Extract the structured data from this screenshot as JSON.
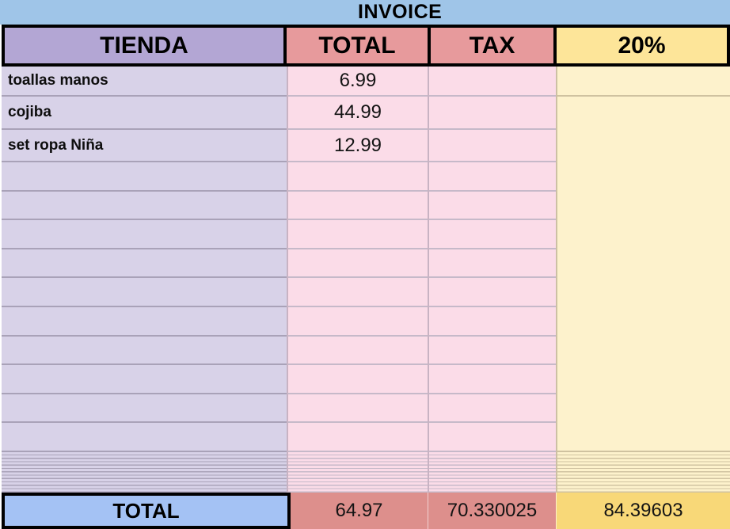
{
  "title": "INVOICE",
  "colors": {
    "band_blue": "#9fc5e8",
    "header_purple": "#b3a6d4",
    "header_red": "#e79a9c",
    "header_yellow": "#fde599",
    "body_purple": "#d8d2e8",
    "body_pink": "#fbdce8",
    "body_yellow": "#fdf2cc",
    "footer_blue": "#a4c2f4",
    "footer_red": "#dd8f8c",
    "footer_yellow": "#f8d878",
    "border_black": "#000000"
  },
  "table": {
    "columns": [
      {
        "key": "tienda",
        "label": "TIENDA"
      },
      {
        "key": "total",
        "label": "TOTAL"
      },
      {
        "key": "tax",
        "label": "TAX"
      },
      {
        "key": "pct",
        "label": "20%"
      }
    ],
    "items": [
      {
        "tienda": "toallas manos",
        "total": "6.99",
        "tax": "",
        "pct": ""
      },
      {
        "tienda": "cojiba",
        "total": "44.99",
        "tax": "",
        "pct": ""
      },
      {
        "tienda": "set ropa Niña",
        "total": "12.99",
        "tax": "",
        "pct": ""
      }
    ],
    "empty_row_count": 10,
    "footer": {
      "label": "TOTAL",
      "total": "64.97",
      "tax": "70.330025",
      "pct": "84.39603"
    }
  }
}
